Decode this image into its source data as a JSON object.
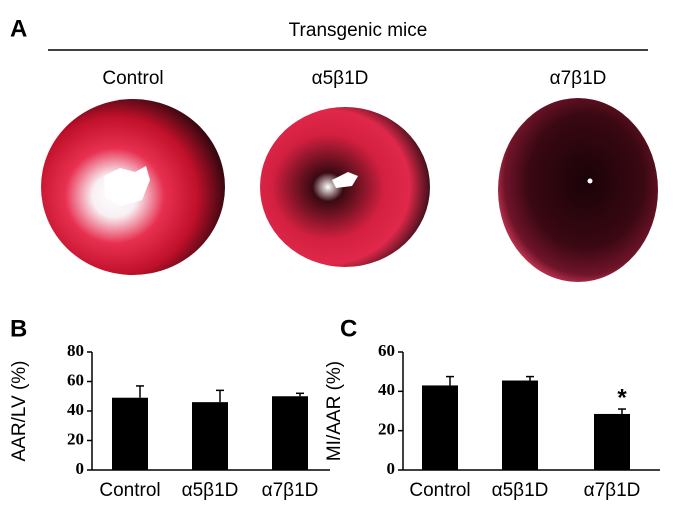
{
  "panel_a": {
    "label": "A",
    "title": "Transgenic mice",
    "columns": [
      "Control",
      "α5β1D",
      "α7β1D"
    ]
  },
  "chart_data": [
    {
      "type": "bar",
      "panel_label": "B",
      "ylabel": "AAR/LV (%)",
      "categories": [
        "Control",
        "α5β1D",
        "α7β1D"
      ],
      "values": [
        49,
        46,
        50
      ],
      "errors": [
        8,
        8,
        2
      ],
      "color": "#000000",
      "ylim": [
        0,
        80
      ],
      "yticks": [
        0,
        20,
        40,
        60,
        80
      ]
    },
    {
      "type": "bar",
      "panel_label": "C",
      "ylabel": "MI/AAR (%)",
      "categories": [
        "Control",
        "α5β1D",
        "α7β1D"
      ],
      "values": [
        43,
        45.5,
        28.5
      ],
      "errors": [
        4.5,
        2,
        2.5
      ],
      "color": "#000000",
      "ylim": [
        0,
        60
      ],
      "yticks": [
        0,
        20,
        40,
        60
      ],
      "annotations": [
        {
          "text": "*",
          "category": "α7β1D"
        }
      ]
    }
  ]
}
